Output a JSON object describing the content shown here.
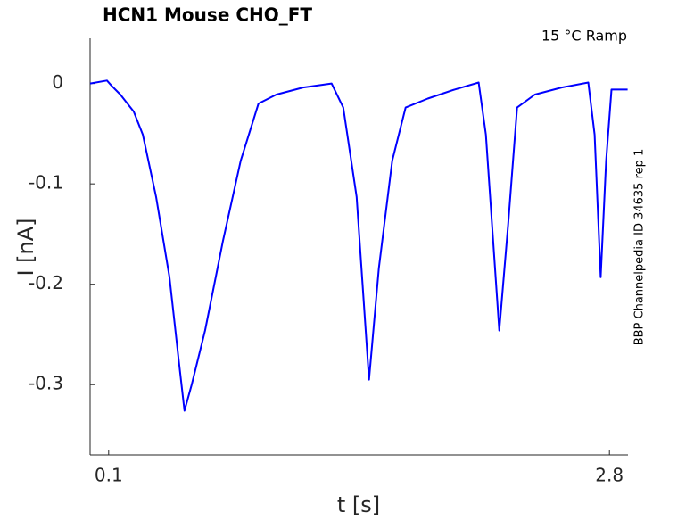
{
  "chart_data": {
    "type": "line",
    "title": "HCN1  Mouse  CHO_FT",
    "annotation": "15 °C  Ramp",
    "side_label": "BBP Channelpedia ID 34635 rep 1",
    "x_label": "t [s]",
    "y_label": "I [nA]",
    "xlim": [
      0,
      2.9
    ],
    "ylim": [
      -0.37,
      0.045
    ],
    "xticks": [
      0.1,
      2.8
    ],
    "yticks": [
      0,
      -0.1,
      -0.2,
      -0.3
    ],
    "color": "#0000ff",
    "x": [
      0,
      0.091,
      0.115,
      0.163,
      0.235,
      0.284,
      0.356,
      0.428,
      0.476,
      0.509,
      0.548,
      0.62,
      0.716,
      0.812,
      0.908,
      1.004,
      1.148,
      1.302,
      1.365,
      1.437,
      1.504,
      1.557,
      1.629,
      1.701,
      1.821,
      1.965,
      2.095,
      2.134,
      2.206,
      2.254,
      2.302,
      2.398,
      2.542,
      2.686,
      2.72,
      2.753,
      2.782,
      2.811,
      2.898
    ],
    "values": [
      0,
      0.003,
      -0.002,
      -0.011,
      -0.028,
      -0.051,
      -0.113,
      -0.193,
      -0.273,
      -0.326,
      -0.3,
      -0.246,
      -0.157,
      -0.077,
      -0.02,
      -0.011,
      -0.004,
      0,
      -0.024,
      -0.113,
      -0.295,
      -0.184,
      -0.077,
      -0.024,
      -0.015,
      -0.006,
      0.001,
      -0.051,
      -0.246,
      -0.14,
      -0.024,
      -0.011,
      -0.004,
      0.001,
      -0.051,
      -0.193,
      -0.077,
      -0.006,
      -0.006
    ]
  }
}
